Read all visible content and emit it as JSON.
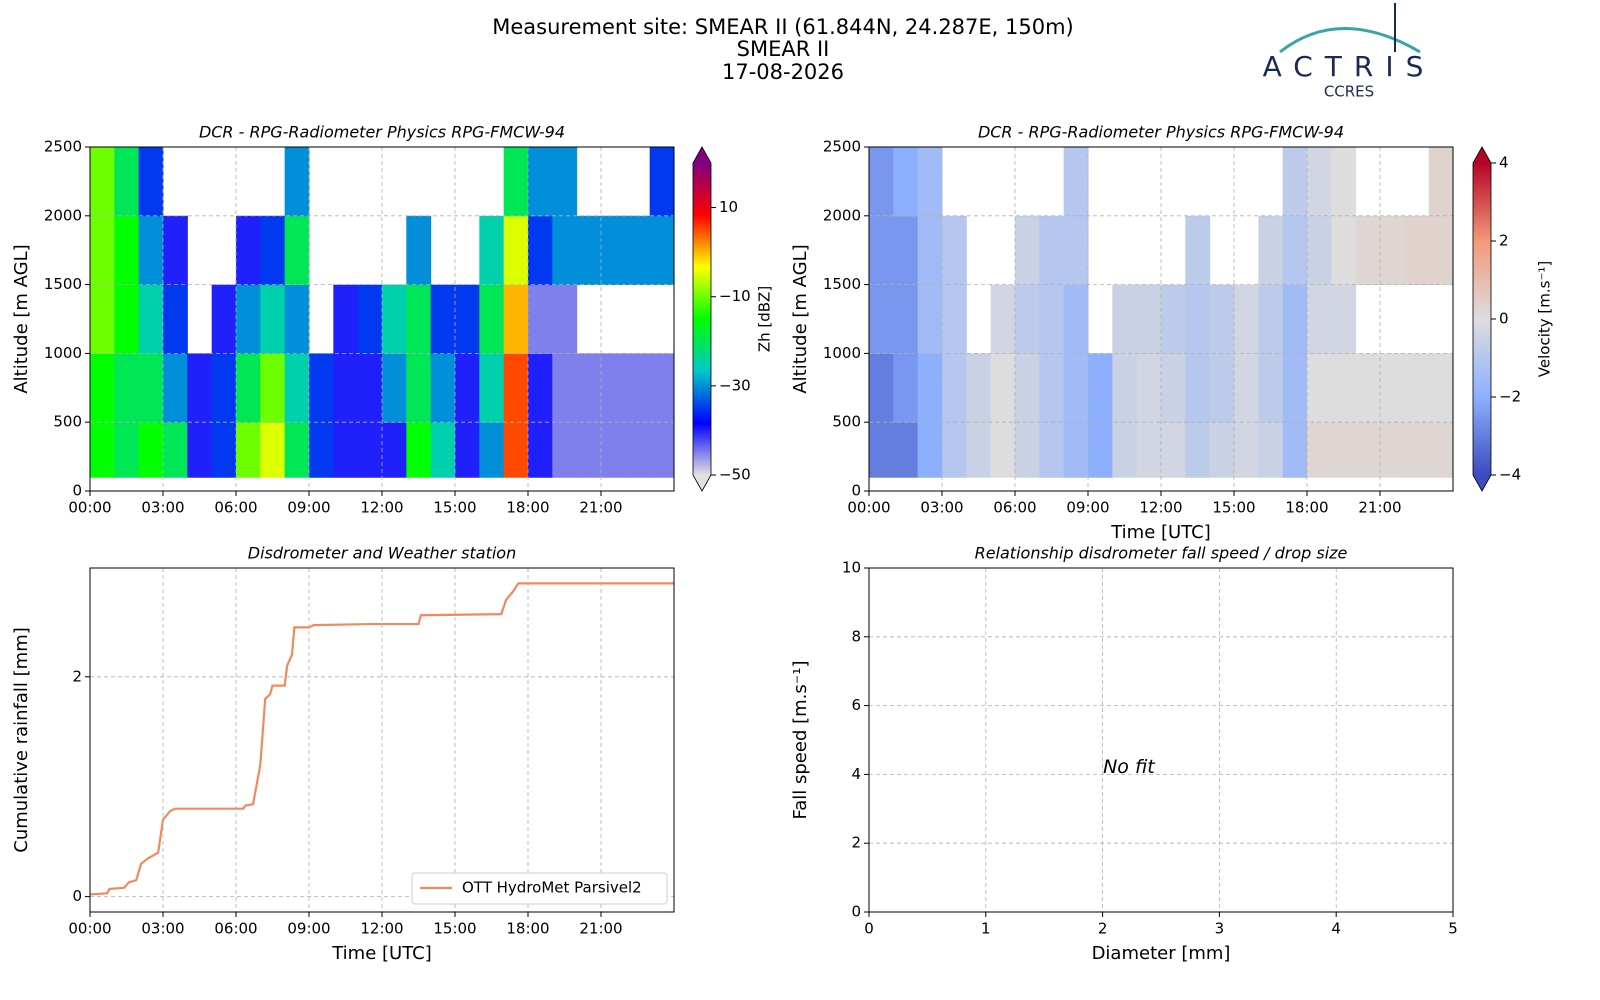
{
  "header": {
    "title_lines": [
      "Measurement site: SMEAR II (61.844N, 24.287E, 150m)",
      "SMEAR II",
      "17-08-2026"
    ],
    "logo": "ACTRIS",
    "logo_sub": "CCRES"
  },
  "chart_data": [
    {
      "type": "heatmap",
      "title": "DCR - RPG-Radiometer Physics RPG-FMCW-94",
      "ylabel": "Altitude [m AGL]",
      "xlim": [
        0,
        24
      ],
      "xticks": [
        {
          "value": 0,
          "label": "00:00"
        },
        {
          "value": 3,
          "label": "03:00"
        },
        {
          "value": 6,
          "label": "06:00"
        },
        {
          "value": 9,
          "label": "09:00"
        },
        {
          "value": 12,
          "label": "12:00"
        },
        {
          "value": 15,
          "label": "15:00"
        },
        {
          "value": 18,
          "label": "18:00"
        },
        {
          "value": 21,
          "label": "21:00"
        }
      ],
      "ylim": [
        0,
        2500
      ],
      "yticks": [
        0,
        500,
        1000,
        1500,
        2000,
        2500
      ],
      "grid": true,
      "x_bins": [
        0,
        1,
        2,
        3,
        4,
        5,
        6,
        7,
        8,
        9,
        10,
        11,
        12,
        13,
        14,
        15,
        16,
        17,
        18,
        19,
        20,
        21,
        22,
        23,
        24
      ],
      "y_bins": [
        100,
        500,
        1000,
        1500,
        2000,
        2500
      ],
      "z": [
        [
          -15,
          -20,
          -15,
          -20,
          -40,
          -35,
          -10,
          -5,
          -20,
          -35,
          -40,
          -40,
          -40,
          -15,
          -25,
          -40,
          -30,
          5,
          -40,
          -45,
          -45,
          -45,
          -45,
          -45
        ],
        [
          -15,
          -20,
          -20,
          -30,
          -40,
          -35,
          -20,
          -10,
          -25,
          -35,
          -40,
          -40,
          -30,
          -20,
          -30,
          -40,
          -25,
          5,
          -40,
          -45,
          -45,
          -45,
          -45,
          -45
        ],
        [
          -10,
          -15,
          -25,
          -35,
          null,
          -40,
          -30,
          -25,
          -30,
          null,
          -40,
          -35,
          -25,
          -20,
          -35,
          -35,
          -20,
          0,
          -45,
          -45,
          null,
          null,
          null,
          null
        ],
        [
          -10,
          -15,
          -30,
          -40,
          null,
          null,
          -40,
          -35,
          -20,
          null,
          null,
          null,
          null,
          -30,
          null,
          null,
          -25,
          -5,
          -35,
          -30,
          -30,
          -30,
          -30,
          -30
        ],
        [
          -10,
          -20,
          -35,
          null,
          null,
          null,
          null,
          null,
          -30,
          null,
          null,
          null,
          null,
          null,
          null,
          null,
          null,
          -20,
          -30,
          -30,
          null,
          null,
          null,
          -35
        ]
      ],
      "clim": [
        -50,
        20
      ],
      "colormap": [
        "#e0e0e0",
        "#0000ff",
        "#00c8c8",
        "#00ff00",
        "#ffff00",
        "#ff0000",
        "#800080"
      ],
      "extend": "both",
      "colorbar_label": "Zh [dBZ]",
      "colorbar_ticks": [
        {
          "value": -50,
          "label": "−50"
        },
        {
          "value": -30,
          "label": "−30"
        },
        {
          "value": -10,
          "label": "−10"
        },
        10
      ]
    },
    {
      "type": "heatmap",
      "title": "DCR - RPG-Radiometer Physics RPG-FMCW-94",
      "ylabel": "Altitude [m AGL]",
      "xlabel": "Time [UTC]",
      "xlim": [
        0,
        24
      ],
      "xticks": [
        {
          "value": 0,
          "label": "00:00"
        },
        {
          "value": 3,
          "label": "03:00"
        },
        {
          "value": 6,
          "label": "06:00"
        },
        {
          "value": 9,
          "label": "09:00"
        },
        {
          "value": 12,
          "label": "12:00"
        },
        {
          "value": 15,
          "label": "15:00"
        },
        {
          "value": 18,
          "label": "18:00"
        },
        {
          "value": 21,
          "label": "21:00"
        }
      ],
      "ylim": [
        0,
        2500
      ],
      "yticks": [
        0,
        500,
        1000,
        1500,
        2000,
        2500
      ],
      "grid": true,
      "x_bins": [
        0,
        1,
        2,
        3,
        4,
        5,
        6,
        7,
        8,
        9,
        10,
        11,
        12,
        13,
        14,
        15,
        16,
        17,
        18,
        19,
        20,
        21,
        22,
        23,
        24
      ],
      "y_bins": [
        100,
        500,
        1000,
        1500,
        2000,
        2500
      ],
      "z": [
        [
          -3,
          -3,
          -2,
          -1,
          -0.5,
          0,
          -0.5,
          -1,
          -1.5,
          -2,
          -0.5,
          -0.3,
          -0.3,
          -0.8,
          -0.5,
          -0.3,
          -0.5,
          -1.5,
          0.2,
          0.2,
          0.2,
          0.2,
          0.2,
          0.2
        ],
        [
          -3,
          -2.5,
          -2,
          -1,
          -0.5,
          0,
          -0.5,
          -1,
          -1.5,
          -2,
          -0.5,
          -0.3,
          -0.5,
          -1,
          -0.8,
          -0.3,
          -0.8,
          -1.5,
          0,
          0,
          0,
          0,
          0,
          0
        ],
        [
          -2.5,
          -2.5,
          -1.5,
          -1,
          null,
          -0.3,
          -0.8,
          -1,
          -1.5,
          null,
          -0.5,
          -0.5,
          -0.8,
          -1,
          -0.8,
          -0.3,
          -0.8,
          -1.5,
          -0.3,
          -0.3,
          null,
          null,
          null,
          null
        ],
        [
          -2.5,
          -2.5,
          -1.5,
          -1,
          null,
          null,
          -0.5,
          -1,
          -1,
          null,
          null,
          null,
          null,
          -0.8,
          null,
          null,
          -0.5,
          -1,
          -0.5,
          0,
          0.2,
          0.2,
          0.3,
          0.3
        ],
        [
          -2.5,
          -2,
          -1.5,
          null,
          null,
          null,
          null,
          null,
          -1,
          null,
          null,
          null,
          null,
          null,
          null,
          null,
          null,
          -0.8,
          -0.3,
          0,
          null,
          null,
          null,
          0.3
        ]
      ],
      "clim": [
        -4,
        4
      ],
      "colormap": [
        "#3b4cc0",
        "#8db0fe",
        "#dddddd",
        "#f4987a",
        "#b40426"
      ],
      "extend": "both",
      "colorbar_label": "Velocity [m.s⁻¹]",
      "colorbar_ticks": [
        {
          "value": -4,
          "label": "−4"
        },
        {
          "value": -2,
          "label": "−2"
        },
        0,
        2,
        4
      ]
    },
    {
      "type": "line",
      "title": "Disdrometer and Weather station",
      "ylabel": "Cumulative rainfall [mm]",
      "xlabel": "Time [UTC]",
      "xlim": [
        0,
        24
      ],
      "xticks": [
        {
          "value": 0,
          "label": "00:00"
        },
        {
          "value": 3,
          "label": "03:00"
        },
        {
          "value": 6,
          "label": "06:00"
        },
        {
          "value": 9,
          "label": "09:00"
        },
        {
          "value": 12,
          "label": "12:00"
        },
        {
          "value": 15,
          "label": "15:00"
        },
        {
          "value": 18,
          "label": "18:00"
        },
        {
          "value": 21,
          "label": "21:00"
        }
      ],
      "ylim": [
        -0.14,
        2.99
      ],
      "yticks": [
        0,
        2
      ],
      "grid": true,
      "legend": "lower right",
      "x": [
        0,
        0.7,
        0.8,
        1.4,
        1.6,
        1.9,
        2.1,
        2.4,
        2.8,
        3.0,
        3.3,
        3.5,
        6.3,
        6.4,
        6.7,
        7.0,
        7.2,
        7.4,
        7.5,
        8.0,
        8.1,
        8.3,
        8.4,
        9.0,
        9.2,
        11.6,
        13.5,
        13.6,
        16.9,
        17.1,
        17.4,
        17.6,
        24
      ],
      "series": [
        {
          "name": "OTT HydroMet Parsivel2",
          "color": "#f08a5d",
          "values": [
            0.02,
            0.03,
            0.07,
            0.08,
            0.13,
            0.15,
            0.3,
            0.35,
            0.4,
            0.7,
            0.78,
            0.8,
            0.8,
            0.83,
            0.84,
            1.2,
            1.8,
            1.84,
            1.92,
            1.92,
            2.1,
            2.2,
            2.45,
            2.45,
            2.47,
            2.48,
            2.48,
            2.56,
            2.57,
            2.7,
            2.78,
            2.85,
            2.85
          ]
        }
      ]
    },
    {
      "type": "scatter",
      "title": "Relationship disdrometer fall speed / drop size",
      "ylabel": "Fall speed [m.s⁻¹]",
      "xlabel": "Diameter [mm]",
      "xlim": [
        0,
        5
      ],
      "xticks": [
        0,
        1,
        2,
        3,
        4,
        5
      ],
      "ylim": [
        0,
        10
      ],
      "yticks": [
        0,
        2,
        4,
        6,
        8,
        10
      ],
      "grid": true,
      "x": [],
      "y": [],
      "annotation": "No fit"
    }
  ]
}
